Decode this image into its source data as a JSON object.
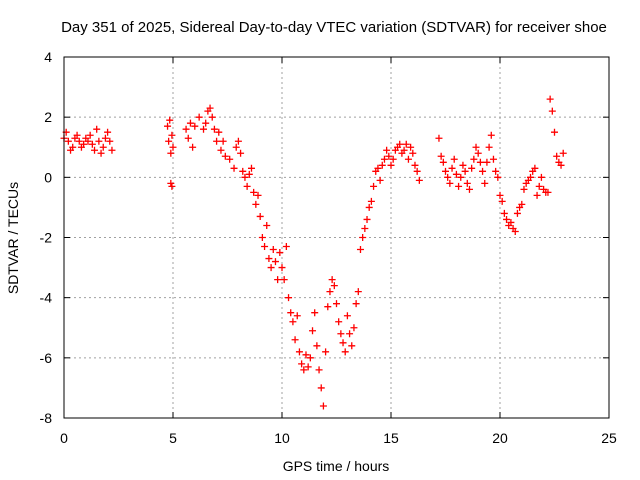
{
  "chart_data": {
    "type": "scatter",
    "title": "Day 351 of 2025, Sidereal Day-to-day VTEC variation (SDTVAR) for receiver shoe",
    "xlabel": "GPS time / hours",
    "ylabel": "SDTVAR / TECUs",
    "xlim": [
      0,
      25
    ],
    "ylim": [
      -8,
      4
    ],
    "xticks": [
      0,
      5,
      10,
      15,
      20,
      25
    ],
    "yticks": [
      -8,
      -6,
      -4,
      -2,
      0,
      2,
      4
    ],
    "grid": true,
    "marker": "+",
    "series": [
      {
        "name": "SDTVAR",
        "color": "#ff0000",
        "x": [
          0.0,
          0.1,
          0.2,
          0.3,
          0.4,
          0.5,
          0.6,
          0.7,
          0.8,
          0.9,
          1.0,
          1.1,
          1.2,
          1.3,
          1.4,
          1.5,
          1.6,
          1.7,
          1.8,
          1.9,
          2.0,
          2.1,
          2.2,
          4.75,
          4.8,
          4.85,
          4.9,
          4.95,
          5.0,
          4.9,
          4.95,
          5.6,
          5.7,
          5.8,
          5.9,
          6.0,
          6.2,
          6.4,
          6.5,
          6.6,
          6.7,
          6.8,
          6.9,
          7.0,
          7.1,
          7.2,
          7.3,
          7.4,
          7.6,
          7.8,
          7.9,
          8.0,
          8.1,
          8.2,
          8.3,
          8.4,
          8.5,
          8.6,
          8.7,
          8.8,
          8.9,
          9.0,
          9.1,
          9.2,
          9.3,
          9.4,
          9.5,
          9.6,
          9.7,
          9.8,
          9.9,
          10.0,
          10.1,
          10.2,
          10.3,
          10.4,
          10.5,
          10.6,
          10.7,
          10.8,
          10.9,
          11.0,
          11.1,
          11.2,
          11.3,
          11.4,
          11.5,
          11.6,
          11.7,
          11.8,
          11.9,
          12.0,
          12.1,
          12.2,
          12.3,
          12.4,
          12.5,
          12.6,
          12.7,
          12.8,
          12.9,
          13.0,
          13.1,
          13.2,
          13.3,
          13.4,
          13.5,
          13.6,
          13.7,
          13.8,
          13.9,
          14.0,
          14.1,
          14.2,
          14.3,
          14.4,
          14.5,
          14.6,
          14.7,
          14.8,
          14.9,
          15.0,
          15.1,
          15.2,
          15.3,
          15.4,
          15.5,
          15.6,
          15.7,
          15.8,
          15.9,
          16.0,
          16.1,
          16.2,
          16.3,
          17.2,
          17.3,
          17.4,
          17.5,
          17.6,
          17.7,
          17.8,
          17.9,
          18.0,
          18.1,
          18.2,
          18.3,
          18.4,
          18.5,
          18.6,
          18.7,
          18.8,
          18.9,
          19.0,
          19.1,
          19.2,
          19.3,
          19.4,
          19.5,
          19.6,
          19.7,
          19.8,
          19.9,
          20.0,
          20.1,
          20.2,
          20.3,
          20.4,
          20.5,
          20.6,
          20.7,
          20.8,
          20.9,
          21.0,
          21.1,
          21.2,
          21.3,
          21.4,
          21.5,
          21.6,
          21.7,
          21.8,
          21.9,
          22.0,
          22.1,
          22.2,
          22.3,
          22.4,
          22.5,
          22.6,
          22.7,
          22.8,
          22.9
        ],
        "y": [
          1.3,
          1.5,
          1.2,
          0.9,
          1.0,
          1.3,
          1.4,
          1.2,
          1.0,
          1.1,
          1.3,
          1.2,
          1.4,
          1.1,
          0.9,
          1.6,
          1.2,
          0.8,
          1.0,
          1.3,
          1.5,
          1.2,
          0.9,
          1.7,
          1.2,
          1.9,
          0.8,
          1.4,
          1.0,
          -0.2,
          -0.3,
          1.6,
          1.3,
          1.8,
          1.0,
          1.7,
          2.0,
          1.6,
          1.8,
          2.2,
          2.3,
          2.0,
          1.6,
          1.2,
          1.5,
          0.9,
          1.2,
          0.7,
          0.6,
          0.3,
          1.0,
          1.2,
          0.8,
          0.2,
          0.0,
          -0.3,
          0.1,
          0.3,
          -0.5,
          -0.9,
          -0.6,
          -1.3,
          -2.0,
          -2.3,
          -1.6,
          -2.7,
          -3.0,
          -2.4,
          -2.8,
          -3.4,
          -2.5,
          -3.0,
          -3.4,
          -2.3,
          -4.0,
          -4.5,
          -4.8,
          -5.4,
          -4.6,
          -5.8,
          -6.2,
          -6.4,
          -5.9,
          -6.3,
          -6.0,
          -5.1,
          -4.5,
          -5.6,
          -6.4,
          -7.0,
          -7.6,
          -5.8,
          -4.3,
          -3.8,
          -3.4,
          -3.6,
          -4.2,
          -4.8,
          -5.2,
          -5.5,
          -5.8,
          -4.6,
          -5.2,
          -5.6,
          -5.0,
          -4.2,
          -3.8,
          -2.4,
          -2.0,
          -1.7,
          -1.4,
          -1.0,
          -0.8,
          -0.3,
          0.2,
          0.3,
          -0.1,
          0.4,
          0.6,
          0.9,
          0.7,
          0.4,
          0.6,
          0.9,
          1.0,
          1.1,
          0.8,
          0.9,
          1.1,
          0.6,
          1.0,
          0.8,
          0.4,
          0.2,
          -0.1,
          1.3,
          0.7,
          0.5,
          0.2,
          0.0,
          -0.2,
          0.3,
          0.6,
          0.1,
          -0.3,
          0.0,
          0.4,
          0.2,
          -0.2,
          -0.4,
          0.3,
          0.6,
          1.0,
          0.8,
          0.5,
          0.2,
          -0.2,
          0.5,
          1.0,
          1.4,
          0.6,
          0.2,
          0.0,
          -0.6,
          -0.8,
          -1.2,
          -1.4,
          -1.6,
          -1.5,
          -1.7,
          -1.8,
          -1.2,
          -1.0,
          -0.9,
          -0.4,
          -0.2,
          -0.1,
          0.0,
          0.2,
          0.3,
          -0.6,
          -0.3,
          0.0,
          -0.4,
          -0.5,
          -0.5,
          2.6,
          2.2,
          1.5,
          0.7,
          0.5,
          0.4,
          0.8
        ]
      }
    ]
  }
}
